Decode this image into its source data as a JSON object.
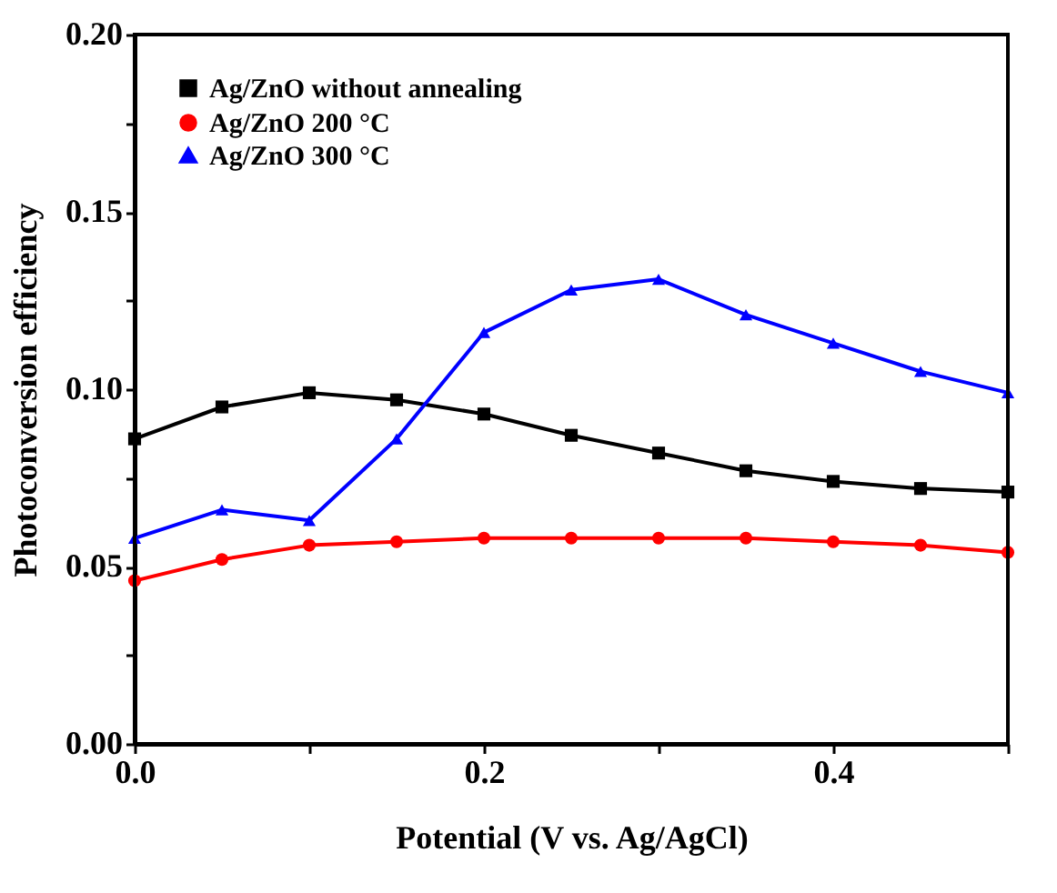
{
  "chart_data": {
    "type": "line",
    "xlabel": "Potential (V vs. Ag/AgCl)",
    "ylabel": "Photoconversion efficiency",
    "x": [
      0,
      0.05,
      0.1,
      0.15,
      0.2,
      0.25,
      0.3,
      0.35,
      0.4,
      0.45,
      0.5
    ],
    "series": [
      {
        "name": "Ag/ZnO without annealing",
        "color": "#000000",
        "marker": "square",
        "values": [
          0.086,
          0.095,
          0.099,
          0.097,
          0.093,
          0.087,
          0.082,
          0.077,
          0.074,
          0.072,
          0.071
        ]
      },
      {
        "name": "Ag/ZnO 200 °C",
        "color": "#ff0000",
        "marker": "circle",
        "values": [
          0.046,
          0.052,
          0.056,
          0.057,
          0.058,
          0.058,
          0.058,
          0.058,
          0.057,
          0.056,
          0.054
        ]
      },
      {
        "name": "Ag/ZnO 300 °C",
        "color": "#0000ff",
        "marker": "triangle",
        "values": [
          0.058,
          0.066,
          0.063,
          0.086,
          0.116,
          0.128,
          0.131,
          0.121,
          0.113,
          0.105,
          0.099
        ]
      }
    ],
    "xlim": [
      0,
      0.5
    ],
    "xticks": [
      {
        "value": 0,
        "label": "0.0"
      },
      {
        "value": 0.1,
        "label": null
      },
      {
        "value": 0.2,
        "label": "0.2"
      },
      {
        "value": 0.3,
        "label": null
      },
      {
        "value": 0.4,
        "label": "0.4"
      },
      {
        "value": 0.5,
        "label": null
      }
    ],
    "ylim": [
      0,
      0.2
    ],
    "yticks": [
      {
        "value": 0,
        "label": "0.00"
      },
      {
        "value": 0.025,
        "label": null
      },
      {
        "value": 0.05,
        "label": "0.05"
      },
      {
        "value": 0.075,
        "label": null
      },
      {
        "value": 0.1,
        "label": "0.10"
      },
      {
        "value": 0.125,
        "label": null
      },
      {
        "value": 0.15,
        "label": "0.15"
      },
      {
        "value": 0.175,
        "label": null
      },
      {
        "value": 0.2,
        "label": "0.20"
      }
    ],
    "grid": false,
    "legend": "top left",
    "line_style": "solid"
  }
}
